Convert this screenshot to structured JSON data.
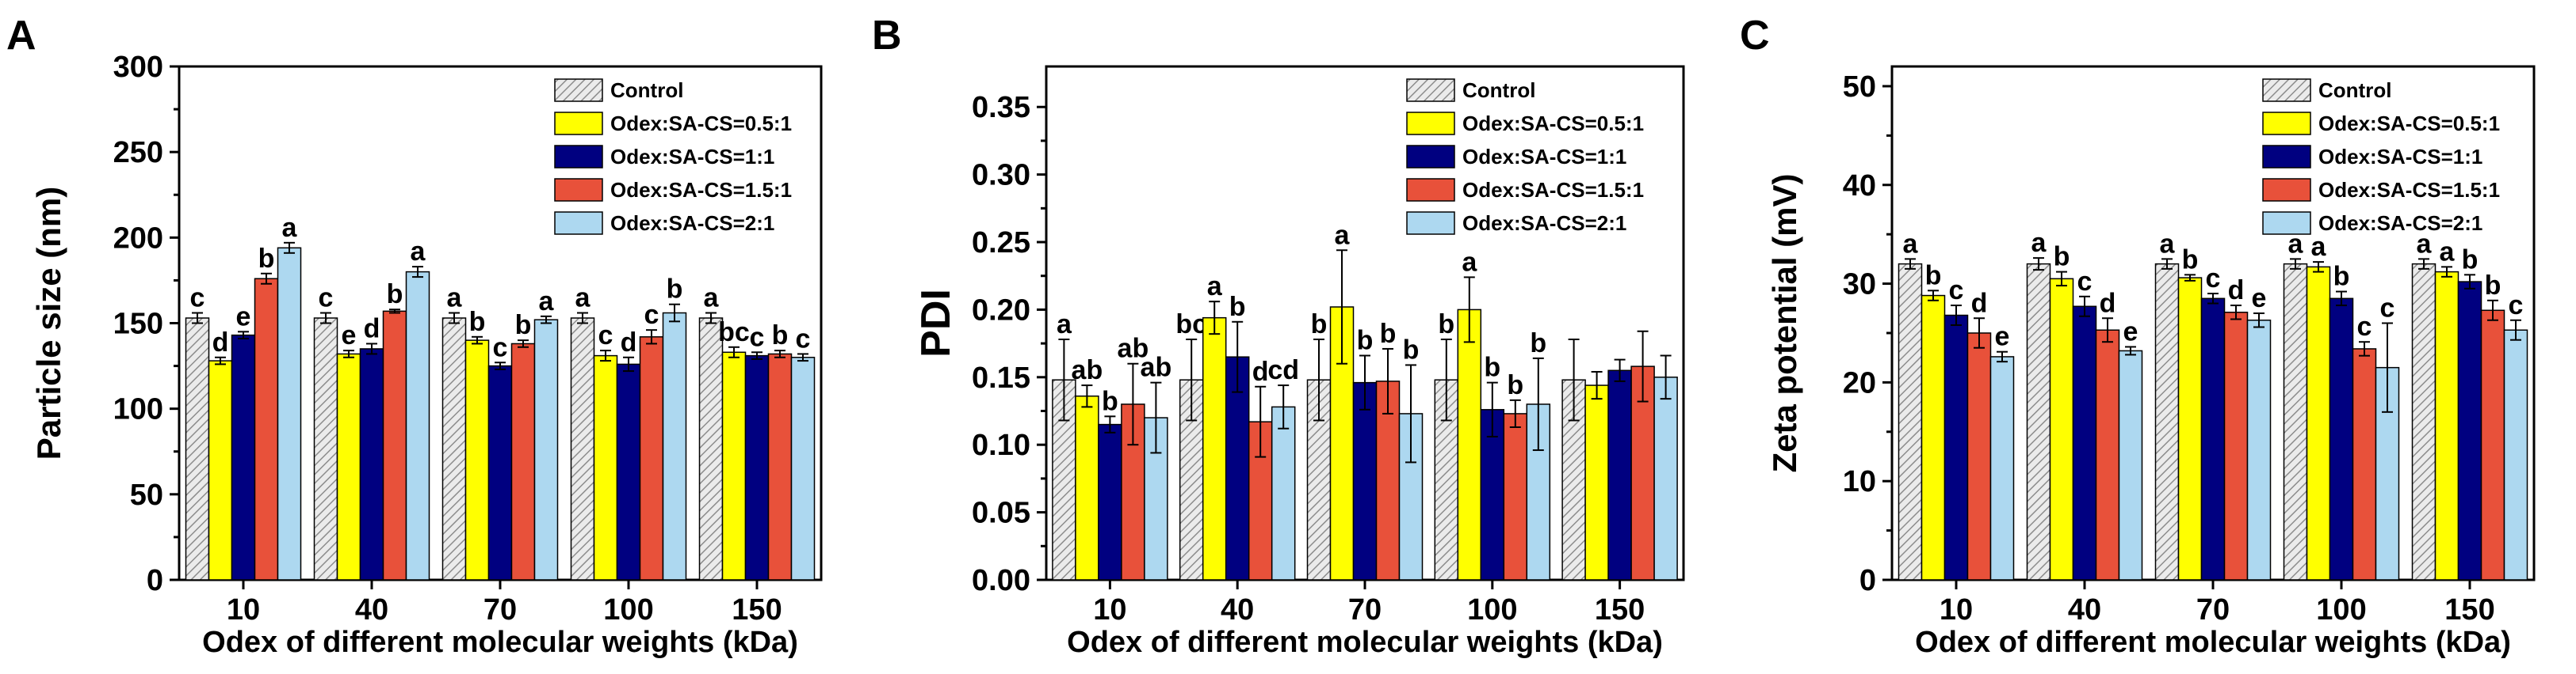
{
  "colors": {
    "control": "#d9d9d9",
    "r05": "#ffff00",
    "r1": "#000080",
    "r15": "#e8513a",
    "r2": "#add8f0",
    "axis": "#000000"
  },
  "chart_data": [
    {
      "panel": "A",
      "type": "bar",
      "title": "",
      "xlabel": "Odex of different molecular weights (kDa)",
      "ylabel": "Particle size (nm)",
      "ylim": [
        0,
        300
      ],
      "yticks": [
        0,
        50,
        100,
        150,
        200,
        250,
        300
      ],
      "categories": [
        "10",
        "40",
        "70",
        "100",
        "150"
      ],
      "legend_position": "top-right",
      "series": [
        {
          "name": "Control",
          "values": [
            153,
            153,
            153,
            153,
            153
          ],
          "errors": [
            3,
            3,
            3,
            3,
            3
          ],
          "letters": [
            "c",
            "c",
            "a",
            "a",
            "a"
          ]
        },
        {
          "name": "Odex:SA-CS=0.5:1",
          "values": [
            128,
            132,
            140,
            131,
            133
          ],
          "errors": [
            2,
            2,
            2,
            3,
            3
          ],
          "letters": [
            "d",
            "e",
            "b",
            "c",
            "bc"
          ]
        },
        {
          "name": "Odex:SA-CS=1:1",
          "values": [
            143,
            135,
            125,
            126,
            131
          ],
          "errors": [
            2,
            3,
            2,
            4,
            2
          ],
          "letters": [
            "e",
            "d",
            "c",
            "d",
            "c"
          ]
        },
        {
          "name": "Odex:SA-CS=1.5:1",
          "values": [
            176,
            157,
            138,
            142,
            132
          ],
          "errors": [
            3,
            1,
            2,
            4,
            2
          ],
          "letters": [
            "b",
            "b",
            "b",
            "c",
            "b"
          ]
        },
        {
          "name": "Odex:SA-CS=2:1",
          "values": [
            194,
            180,
            152,
            156,
            130
          ],
          "errors": [
            3,
            3,
            2,
            5,
            2
          ],
          "letters": [
            "a",
            "a",
            "a",
            "b",
            "c"
          ]
        }
      ]
    },
    {
      "panel": "B",
      "type": "bar",
      "title": "",
      "xlabel": "Odex of different molecular weights (kDa)",
      "ylabel": "PDI",
      "ylim": [
        0,
        0.38
      ],
      "yticks": [
        "0.00",
        "0.05",
        "0.10",
        "0.15",
        "0.20",
        "0.25",
        "0.30",
        "0.35"
      ],
      "categories": [
        "10",
        "40",
        "70",
        "100",
        "150"
      ],
      "legend_position": "top-right",
      "series": [
        {
          "name": "Control",
          "values": [
            0.148,
            0.148,
            0.148,
            0.148,
            0.148
          ],
          "errors": [
            0.03,
            0.03,
            0.03,
            0.03,
            0.03
          ],
          "letters": [
            "a",
            "bc",
            "b",
            "b",
            ""
          ]
        },
        {
          "name": "Odex:SA-CS=0.5:1",
          "values": [
            0.136,
            0.194,
            0.202,
            0.2,
            0.144
          ],
          "errors": [
            0.008,
            0.012,
            0.042,
            0.024,
            0.01
          ],
          "letters": [
            "ab",
            "a",
            "a",
            "a",
            ""
          ]
        },
        {
          "name": "Odex:SA-CS=1:1",
          "values": [
            0.115,
            0.165,
            0.146,
            0.126,
            0.155
          ],
          "errors": [
            0.006,
            0.026,
            0.02,
            0.02,
            0.008
          ],
          "letters": [
            "b",
            "b",
            "b",
            "b",
            ""
          ]
        },
        {
          "name": "Odex:SA-CS=1.5:1",
          "values": [
            0.13,
            0.117,
            0.147,
            0.123,
            0.158
          ],
          "errors": [
            0.03,
            0.026,
            0.024,
            0.01,
            0.026
          ],
          "letters": [
            "ab",
            "d",
            "b",
            "b",
            ""
          ]
        },
        {
          "name": "Odex:SA-CS=2:1",
          "values": [
            0.12,
            0.128,
            0.123,
            0.13,
            0.15
          ],
          "errors": [
            0.026,
            0.016,
            0.036,
            0.034,
            0.016
          ],
          "letters": [
            "ab",
            "cd",
            "b",
            "b",
            ""
          ]
        }
      ]
    },
    {
      "panel": "C",
      "type": "bar",
      "title": "",
      "xlabel": "Odex of different molecular weights (kDa)",
      "ylabel": "Zeta potential (mV)",
      "ylim": [
        0,
        52
      ],
      "yticks": [
        0,
        10,
        20,
        30,
        40,
        50
      ],
      "categories": [
        "10",
        "40",
        "70",
        "100",
        "150"
      ],
      "legend_position": "top-right",
      "series": [
        {
          "name": "Control",
          "values": [
            32.0,
            32.0,
            32.0,
            32.0,
            32.0
          ],
          "errors": [
            0.5,
            0.6,
            0.5,
            0.5,
            0.5
          ],
          "letters": [
            "a",
            "a",
            "a",
            "a",
            "a"
          ]
        },
        {
          "name": "Odex:SA-CS=0.5:1",
          "values": [
            28.8,
            30.5,
            30.6,
            31.7,
            31.2
          ],
          "errors": [
            0.5,
            0.7,
            0.3,
            0.5,
            0.5
          ],
          "letters": [
            "b",
            "b",
            "b",
            "a",
            "a"
          ]
        },
        {
          "name": "Odex:SA-CS=1:1",
          "values": [
            26.8,
            27.7,
            28.5,
            28.5,
            30.2
          ],
          "errors": [
            1.0,
            1.0,
            0.5,
            0.7,
            0.7
          ],
          "letters": [
            "c",
            "c",
            "c",
            "b",
            "b"
          ]
        },
        {
          "name": "Odex:SA-CS=1.5:1",
          "values": [
            25.0,
            25.3,
            27.1,
            23.4,
            27.3
          ],
          "errors": [
            1.5,
            1.2,
            0.7,
            0.7,
            1.0
          ],
          "letters": [
            "d",
            "d",
            "d",
            "c",
            "b"
          ]
        },
        {
          "name": "Odex:SA-CS=2:1",
          "values": [
            22.6,
            23.2,
            26.3,
            21.5,
            25.3
          ],
          "errors": [
            0.5,
            0.4,
            0.7,
            4.5,
            1.0
          ],
          "letters": [
            "e",
            "e",
            "e",
            "c",
            "c"
          ]
        }
      ]
    }
  ]
}
